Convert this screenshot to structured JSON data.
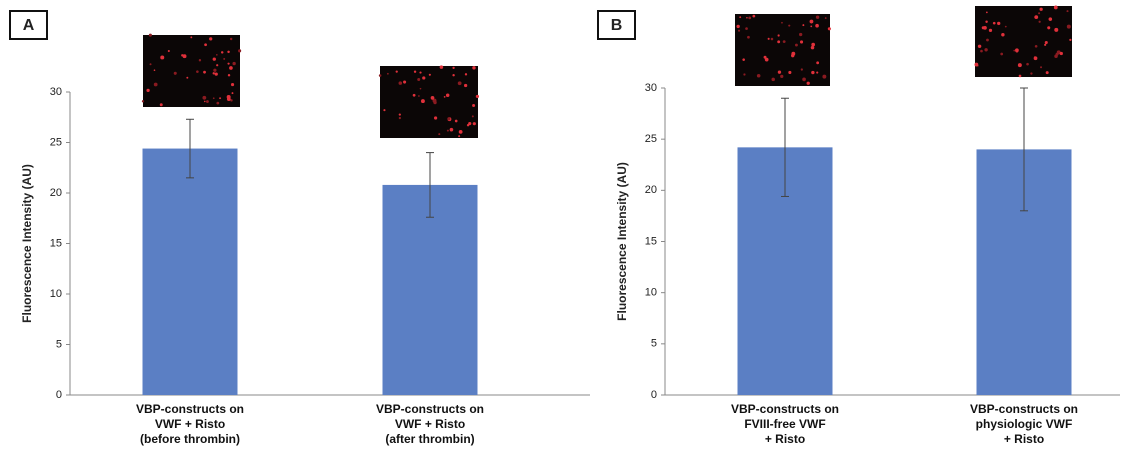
{
  "chart_data": [
    {
      "type": "bar",
      "panel": "A",
      "ylabel": "Fluorescence Intensity (AU)",
      "categories": [
        "VBP-constructs on\nVWF + Risto\n(before thrombin)",
        "VBP-constructs on\nVWF + Risto\n(after thrombin)"
      ],
      "values": [
        24.4,
        20.8
      ],
      "errors": [
        2.9,
        3.2
      ],
      "color": "#5b7fc4",
      "ylim": [
        0,
        30
      ],
      "yticks": [
        0,
        5,
        10,
        15,
        20,
        25,
        30
      ]
    },
    {
      "type": "bar",
      "panel": "B",
      "ylabel": "Fluorescence Intensity (AU)",
      "categories": [
        "VBP-constructs on\nFVIII-free VWF\n+ Risto",
        "VBP-constructs on\nphysiologic VWF\n+ Risto"
      ],
      "values": [
        24.2,
        24.0
      ],
      "errors": [
        4.8,
        6.0
      ],
      "color": "#5b7fc4",
      "ylim": [
        0,
        30
      ],
      "yticks": [
        0,
        5,
        10,
        15,
        20,
        25,
        30
      ]
    }
  ]
}
